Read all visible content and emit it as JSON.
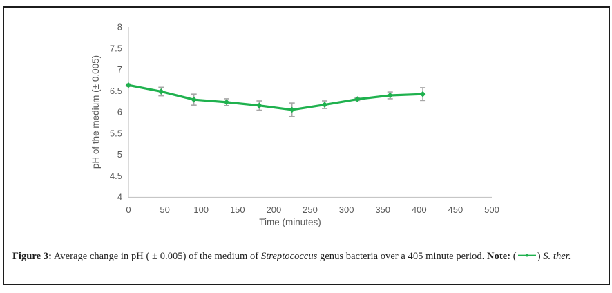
{
  "figure": {
    "caption": {
      "label": "Figure 3:",
      "text_before_species": " Average change in pH ( ± 0.005) of the medium of ",
      "species": "Streptococcus",
      "text_after_species": " genus bacteria over a 405 minute period. ",
      "note_label": "Note:",
      "paren_open": " (",
      "paren_close": ") ",
      "legend_species": "S. ther."
    }
  },
  "colors": {
    "series_green": "#1fb14e",
    "error_bar_gray": "#a6a6a6",
    "axis_line_gray": "#c6c6c6",
    "tick_text_gray": "#595959",
    "frame_black": "#1c1c1c"
  },
  "chart_data": {
    "type": "line",
    "title": "",
    "xlabel": "Time (minutes)",
    "ylabel": "pH of the medium (± 0.005)",
    "xlim": [
      0,
      500
    ],
    "ylim": [
      4,
      8
    ],
    "xticks": [
      0,
      50,
      100,
      150,
      200,
      250,
      300,
      350,
      400,
      450,
      500
    ],
    "yticks": [
      4,
      4.5,
      5,
      5.5,
      6,
      6.5,
      7,
      7.5,
      8
    ],
    "grid": false,
    "legend_position": "none",
    "series": [
      {
        "name": "S. ther.",
        "color": "#1fb14e",
        "marker": "diamond",
        "x": [
          0,
          45,
          90,
          135,
          180,
          225,
          270,
          315,
          360,
          405
        ],
        "y": [
          6.63,
          6.48,
          6.29,
          6.23,
          6.15,
          6.05,
          6.17,
          6.3,
          6.39,
          6.42
        ],
        "yerr": [
          0.03,
          0.1,
          0.13,
          0.08,
          0.11,
          0.16,
          0.09,
          0.03,
          0.08,
          0.15
        ]
      }
    ]
  }
}
